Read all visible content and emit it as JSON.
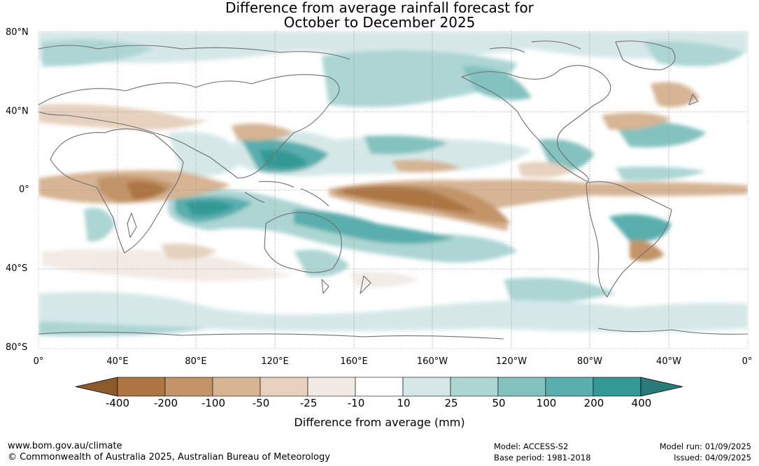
{
  "title_line1": "Difference from average rainfall forecast for",
  "title_line2": "October to December 2025",
  "lat_labels": [
    "80°N",
    "40°N",
    "0°",
    "40°S",
    "80°S"
  ],
  "lon_labels": [
    "0°",
    "40°E",
    "80°E",
    "120°E",
    "160°E",
    "160°W",
    "120°W",
    "80°W",
    "40°W",
    "0°"
  ],
  "colorbar": {
    "title": "Difference from average (mm)",
    "tick_labels": [
      "-400",
      "-200",
      "-100",
      "-50",
      "-25",
      "-10",
      "10",
      "25",
      "50",
      "100",
      "200",
      "400"
    ],
    "colors": [
      "#8c5a2b",
      "#ac7542",
      "#c29468",
      "#d6b494",
      "#e6d1be",
      "#f2ebe5",
      "#ffffff",
      "#d5e8e7",
      "#acd5d4",
      "#84c2c0",
      "#5aaead",
      "#339995",
      "#2a7a78"
    ]
  },
  "footer": {
    "website": "www.bom.gov.au/climate",
    "copyright": "© Commonwealth of Australia 2025, Australian Bureau of Meteorology",
    "model": "Model: ACCESS-S2",
    "base_period": "Base period: 1981-2018",
    "model_run": "Model run: 01/09/2025",
    "issued": "Issued: 04/09/2025"
  }
}
